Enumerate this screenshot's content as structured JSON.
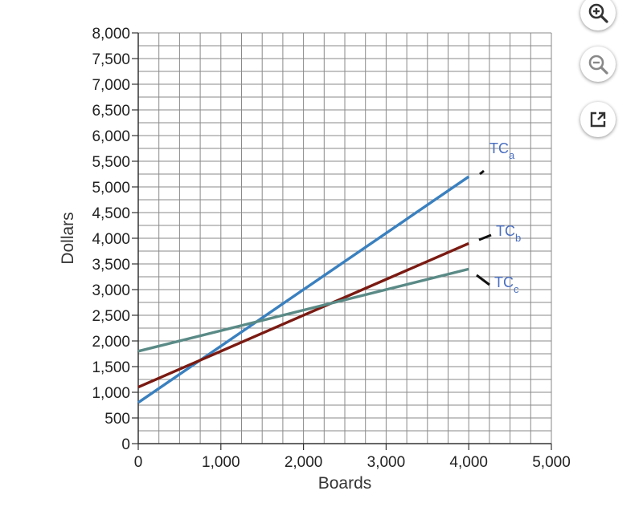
{
  "chart_data": {
    "type": "line",
    "xlabel": "Boards",
    "ylabel": "Dollars",
    "xlim": [
      0,
      5000
    ],
    "ylim": [
      0,
      8000
    ],
    "grid": true,
    "x_ticks": [
      0,
      1000,
      2000,
      3000,
      4000,
      5000
    ],
    "x_tick_labels": [
      "0",
      "1,000",
      "2,000",
      "3,000",
      "4,000",
      "5,000"
    ],
    "y_ticks": [
      0,
      500,
      1000,
      1500,
      2000,
      2500,
      3000,
      3500,
      4000,
      4500,
      5000,
      5500,
      6000,
      6500,
      7000,
      7500,
      8000
    ],
    "y_tick_labels": [
      "0",
      "500",
      "1,000",
      "1,500",
      "2,000",
      "2,500",
      "3,000",
      "3,500",
      "4,000",
      "4,500",
      "5,000",
      "5,500",
      "6,000",
      "6,500",
      "7,000",
      "7,500",
      "8,000"
    ],
    "series": [
      {
        "name": "TCa",
        "label_main": "TC",
        "label_sub": "a",
        "color": "#3a80bf",
        "x": [
          0,
          4000
        ],
        "y": [
          800,
          5200
        ]
      },
      {
        "name": "TCb",
        "label_main": "TC",
        "label_sub": "b",
        "color": "#7a1a12",
        "x": [
          0,
          4000
        ],
        "y": [
          1100,
          3900
        ]
      },
      {
        "name": "TCc",
        "label_main": "TC",
        "label_sub": "c",
        "color": "#5a8a86",
        "x": [
          0,
          4000
        ],
        "y": [
          1800,
          3400
        ]
      }
    ],
    "label_color": "#4a6fc0"
  },
  "toolbar": {
    "zoom_in_icon": "zoom-in-icon",
    "zoom_out_icon": "zoom-out-icon",
    "popout_icon": "external-link-icon"
  }
}
